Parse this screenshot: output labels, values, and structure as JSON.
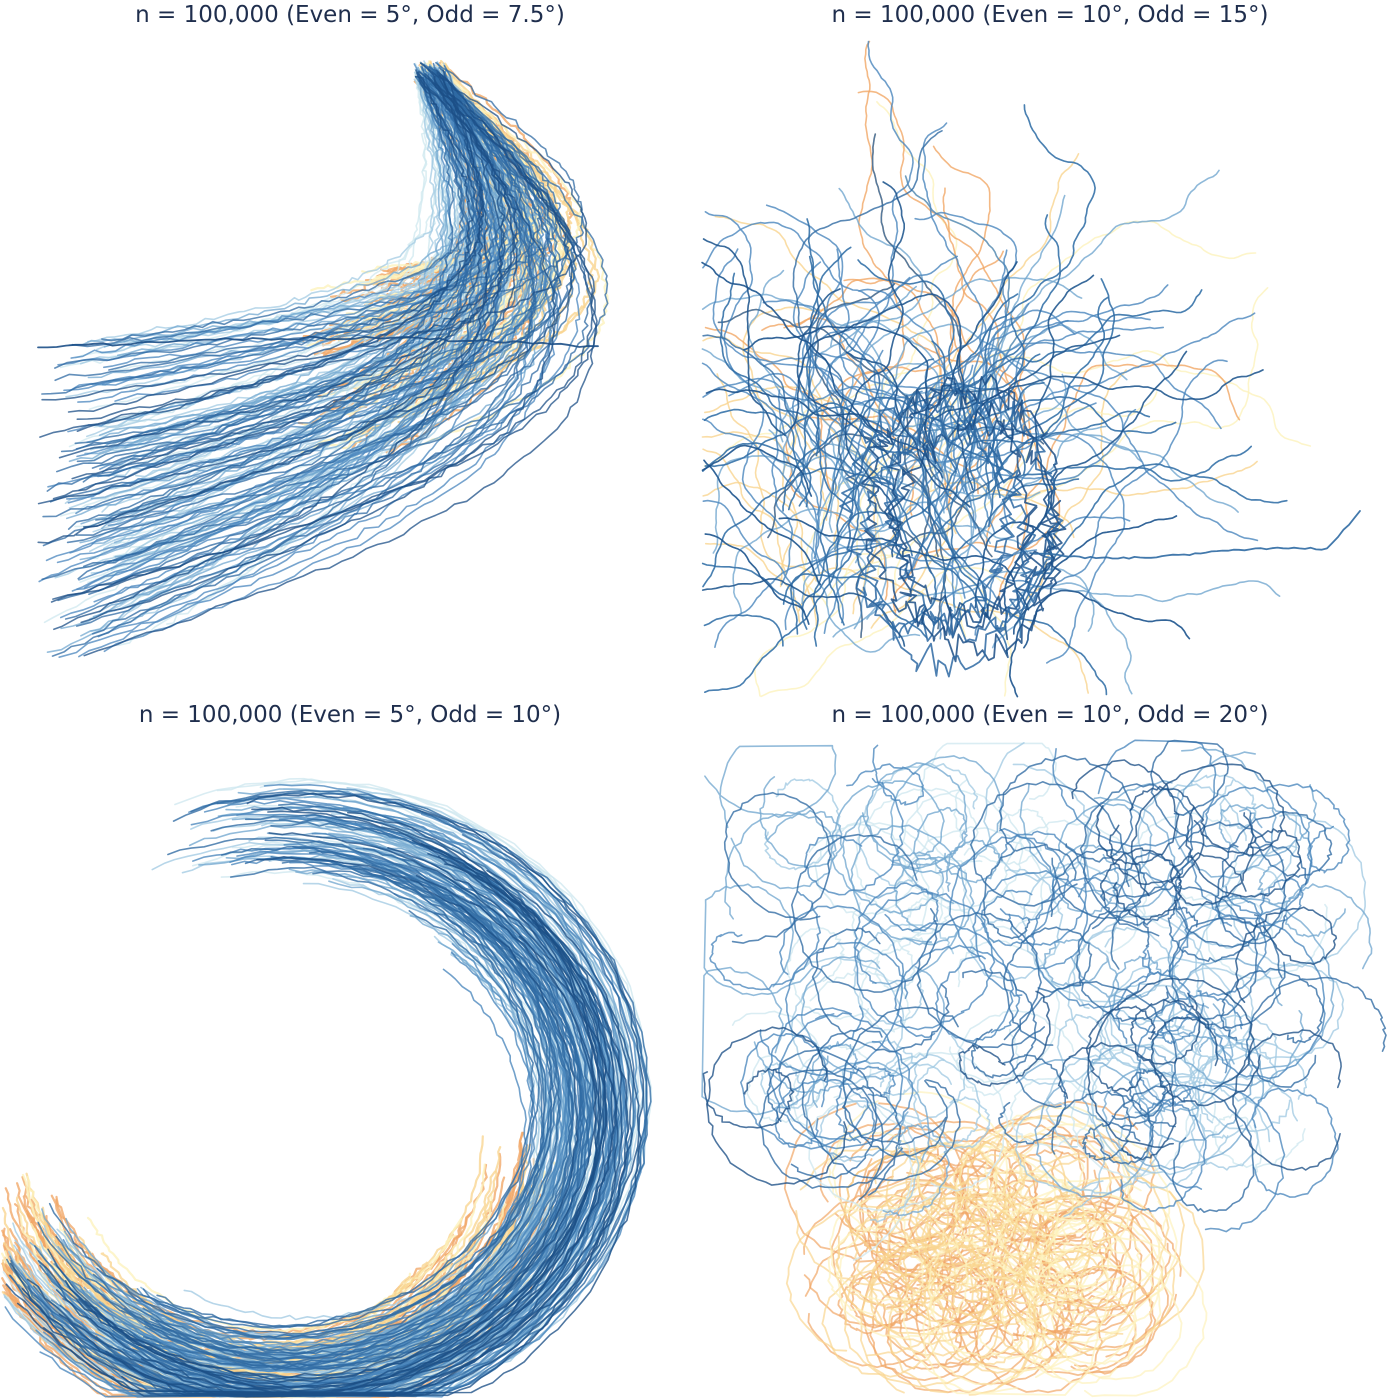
{
  "colors": {
    "title": "#1f2e4d",
    "palette": [
      "#1c4f87",
      "#2f6aa3",
      "#4a86bd",
      "#73a8d0",
      "#a3cbe3",
      "#cfe8ef",
      "#fdf2bd",
      "#f9d590",
      "#f1a766"
    ]
  },
  "chart_data": [
    {
      "type": "line",
      "title": "n = 100,000 (Even = 5°, Odd = 7.5°)",
      "shape": "comet-right",
      "xlabel": "",
      "ylabel": "",
      "axes_visible": false,
      "grid": false
    },
    {
      "type": "line",
      "title": "n = 100,000 (Even = 10°, Odd = 15°)",
      "shape": "tangle-upward",
      "xlabel": "",
      "ylabel": "",
      "axes_visible": false,
      "grid": false
    },
    {
      "type": "line",
      "title": "n = 100,000 (Even = 5°, Odd = 10°)",
      "shape": "crescent-left",
      "xlabel": "",
      "ylabel": "",
      "axes_visible": false,
      "grid": false
    },
    {
      "type": "line",
      "title": "n = 100,000 (Even = 10°, Odd = 20°)",
      "shape": "loops-cloud",
      "xlabel": "",
      "ylabel": "",
      "axes_visible": false,
      "grid": false
    }
  ]
}
